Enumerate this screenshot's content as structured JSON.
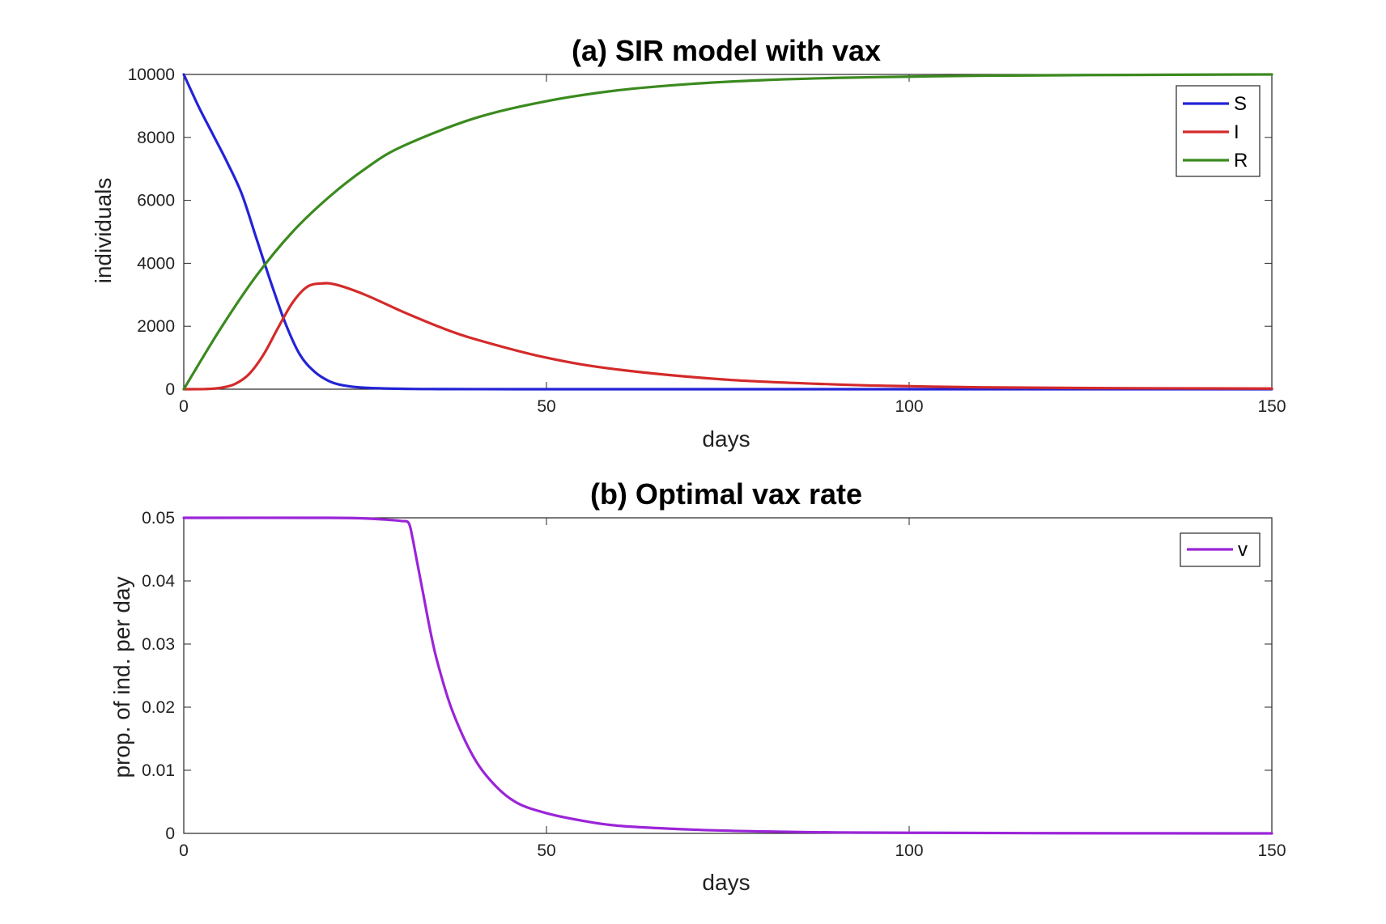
{
  "chart_data": [
    {
      "type": "line",
      "title": "(a) SIR model with vax",
      "xlabel": "days",
      "ylabel": "individuals",
      "xlim": [
        0,
        150
      ],
      "ylim": [
        0,
        10000
      ],
      "xticks": [
        "0",
        "50",
        "100",
        "150"
      ],
      "yticks": [
        "0",
        "2000",
        "4000",
        "6000",
        "8000",
        "10000"
      ],
      "grid": false,
      "legend": "top-right",
      "series": [
        {
          "name": "S",
          "color": "#2323d6",
          "x": [
            0,
            2,
            4,
            6,
            8,
            10,
            12,
            14,
            16,
            18,
            20,
            22,
            25,
            30,
            35,
            40,
            50,
            75,
            100,
            150
          ],
          "y": [
            10000,
            9000,
            8100,
            7200,
            6200,
            4800,
            3400,
            2100,
            1100,
            560,
            260,
            120,
            45,
            12,
            4,
            2,
            0,
            0,
            0,
            0
          ]
        },
        {
          "name": "I",
          "color": "#d42a2a",
          "x": [
            0,
            3,
            5,
            7,
            9,
            11,
            13,
            15,
            17,
            19,
            21,
            25,
            30,
            35,
            40,
            50,
            60,
            75,
            90,
            100,
            110,
            125,
            150
          ],
          "y": [
            0,
            5,
            40,
            160,
            480,
            1100,
            1950,
            2750,
            3250,
            3360,
            3320,
            3000,
            2480,
            2000,
            1600,
            1000,
            620,
            300,
            150,
            95,
            60,
            35,
            20
          ]
        },
        {
          "name": "R",
          "color": "#3b8a1f",
          "x": [
            0,
            5,
            10,
            15,
            20,
            25,
            30,
            40,
            50,
            60,
            70,
            80,
            90,
            100,
            110,
            125,
            150
          ],
          "y": [
            0,
            1900,
            3600,
            5000,
            6100,
            7000,
            7700,
            8600,
            9150,
            9500,
            9700,
            9820,
            9890,
            9930,
            9960,
            9980,
            10000
          ]
        }
      ]
    },
    {
      "type": "line",
      "title": "(b) Optimal vax rate",
      "xlabel": "days",
      "ylabel": "prop. of ind. per day",
      "xlim": [
        0,
        150
      ],
      "ylim": [
        0,
        0.05
      ],
      "xticks": [
        "0",
        "50",
        "100",
        "150"
      ],
      "yticks": [
        "0",
        "0.01",
        "0.02",
        "0.03",
        "0.04",
        "0.05"
      ],
      "grid": false,
      "legend": "top-right",
      "series": [
        {
          "name": "v",
          "color": "#9b24d8",
          "x": [
            0,
            20,
            25,
            28,
            30,
            31,
            31.5,
            32,
            33,
            34,
            35,
            37,
            40,
            43,
            46,
            50,
            55,
            60,
            70,
            80,
            90,
            100,
            120,
            150
          ],
          "y": [
            0.05,
            0.05,
            0.0499,
            0.0497,
            0.0495,
            0.0492,
            0.047,
            0.044,
            0.038,
            0.032,
            0.027,
            0.0195,
            0.012,
            0.0075,
            0.0048,
            0.0032,
            0.002,
            0.0012,
            0.0006,
            0.0003,
            0.00015,
            0.0001,
            3e-05,
            0
          ]
        }
      ]
    }
  ]
}
